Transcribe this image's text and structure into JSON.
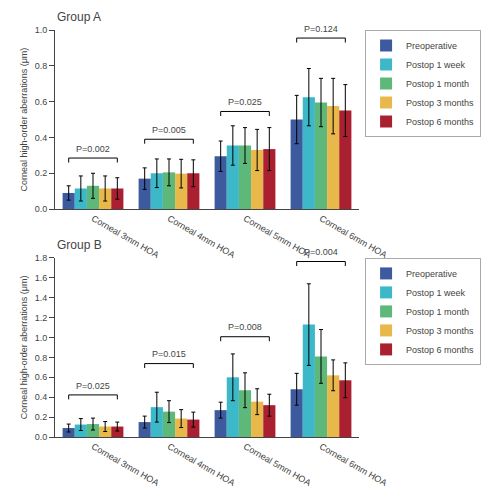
{
  "chart_data": [
    {
      "type": "bar",
      "title": "Group A",
      "ylabel": "Corneal high-order aberrations (μm)",
      "categories": [
        "Corneal 3mm HOA",
        "Corneal 4mm HOA",
        "Corneal 5mm HOA",
        "Corneal 6mm HOA"
      ],
      "series": [
        {
          "name": "Preoperative",
          "color": "#3d5a9e",
          "values": [
            0.09,
            0.17,
            0.295,
            0.5
          ],
          "errors": [
            0.04,
            0.06,
            0.085,
            0.135
          ]
        },
        {
          "name": "Postop 1 week",
          "color": "#3cb8c8",
          "values": [
            0.115,
            0.2,
            0.355,
            0.625
          ],
          "errors": [
            0.07,
            0.08,
            0.11,
            0.16
          ]
        },
        {
          "name": "Postop 1 month",
          "color": "#5db87a",
          "values": [
            0.13,
            0.205,
            0.355,
            0.595
          ],
          "errors": [
            0.07,
            0.075,
            0.1,
            0.135
          ]
        },
        {
          "name": "Postop 3 months",
          "color": "#e8b84b",
          "values": [
            0.115,
            0.198,
            0.33,
            0.575
          ],
          "errors": [
            0.07,
            0.08,
            0.115,
            0.155
          ]
        },
        {
          "name": "Postop 6 months",
          "color": "#aa2030",
          "values": [
            0.115,
            0.2,
            0.335,
            0.55
          ],
          "errors": [
            0.06,
            0.075,
            0.12,
            0.145
          ]
        }
      ],
      "ylim": [
        0,
        1.0
      ],
      "yticks": [
        {
          "value": 0,
          "label": "0.0"
        },
        0.2,
        0.4,
        0.6,
        0.8,
        {
          "value": 1,
          "label": "1.0"
        }
      ],
      "annotations": [
        {
          "text": "P=0.002",
          "category": "Corneal 3mm HOA",
          "y": 0.285
        },
        {
          "text": "P=0.005",
          "category": "Corneal 4mm HOA",
          "y": 0.39
        },
        {
          "text": "P=0.025",
          "category": "Corneal 5mm HOA",
          "y": 0.545
        },
        {
          "text": "P=0.124",
          "category": "Corneal 6mm HOA",
          "y": 0.955
        }
      ],
      "grid": false,
      "legend": "upper right"
    },
    {
      "type": "bar",
      "title": "Group B",
      "ylabel": "Corneal high-order aberrations (μm)",
      "categories": [
        "Corneal 3mm HOA",
        "Corneal 4mm HOA",
        "Corneal 5mm HOA",
        "Corneal 6mm HOA"
      ],
      "series": [
        {
          "name": "Preoperative",
          "color": "#3d5a9e",
          "values": [
            0.09,
            0.15,
            0.27,
            0.48
          ],
          "errors": [
            0.04,
            0.06,
            0.08,
            0.16
          ]
        },
        {
          "name": "Postop 1 week",
          "color": "#3cb8c8",
          "values": [
            0.125,
            0.3,
            0.6,
            1.13
          ],
          "errors": [
            0.06,
            0.15,
            0.235,
            0.41
          ]
        },
        {
          "name": "Postop 1 month",
          "color": "#5db87a",
          "values": [
            0.13,
            0.255,
            0.47,
            0.81
          ],
          "errors": [
            0.06,
            0.11,
            0.175,
            0.27
          ]
        },
        {
          "name": "Postop 3 months",
          "color": "#e8b84b",
          "values": [
            0.105,
            0.185,
            0.355,
            0.62
          ],
          "errors": [
            0.05,
            0.09,
            0.13,
            0.155
          ]
        },
        {
          "name": "Postop 6 months",
          "color": "#aa2030",
          "values": [
            0.105,
            0.175,
            0.32,
            0.57
          ],
          "errors": [
            0.045,
            0.075,
            0.11,
            0.175
          ]
        }
      ],
      "ylim": [
        0,
        1.8
      ],
      "yticks": [
        {
          "value": 0,
          "label": "0.0"
        },
        0.2,
        0.4,
        0.6,
        0.8,
        {
          "value": 1,
          "label": "1.0"
        },
        1.2,
        1.4,
        1.6,
        1.8
      ],
      "annotations": [
        {
          "text": "P=0.025",
          "category": "Corneal 3mm HOA",
          "y": 0.423
        },
        {
          "text": "P=0.015",
          "category": "Corneal 4mm HOA",
          "y": 0.738
        },
        {
          "text": "P=0.008",
          "category": "Corneal 5mm HOA",
          "y": 1.008
        },
        {
          "text": "P=0.004",
          "category": "Corneal 6mm HOA",
          "y": 1.764
        }
      ],
      "grid": false,
      "legend": "upper right"
    }
  ]
}
